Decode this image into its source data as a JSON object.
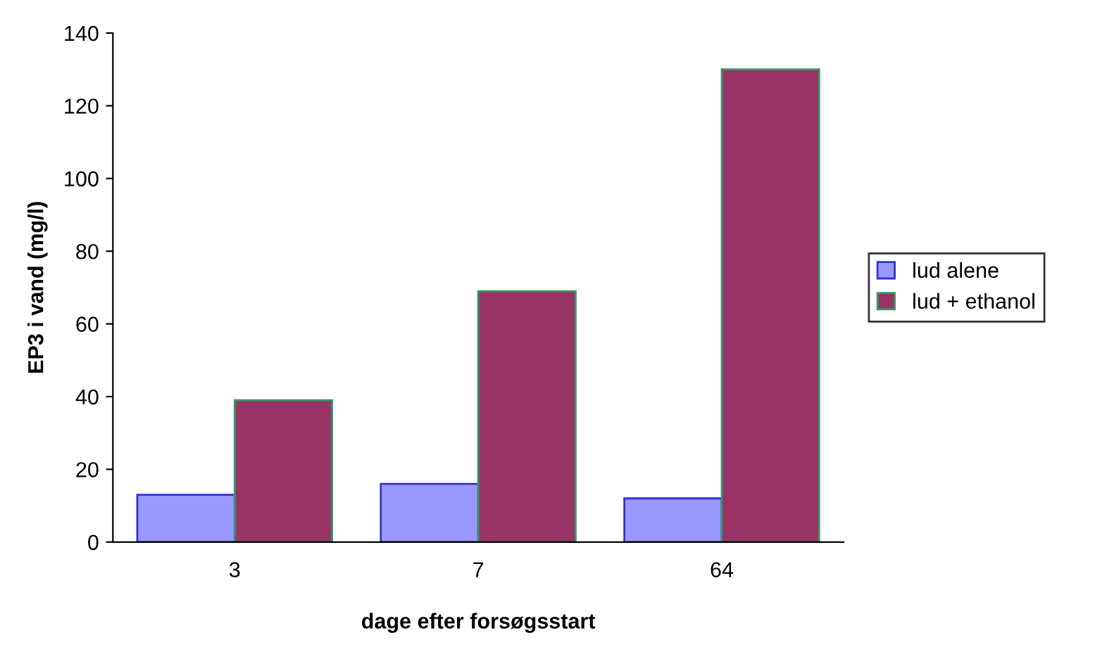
{
  "chart_data": {
    "type": "bar",
    "xlabel": "dage efter forsøgsstart",
    "ylabel": "EP3 i vand (mg/l)",
    "categories": [
      "3",
      "7",
      "64"
    ],
    "series": [
      {
        "name": "lud alene",
        "color": "#9999ff",
        "values": [
          13,
          16,
          12
        ]
      },
      {
        "name": "lud + ethanol",
        "color": "#993366",
        "values": [
          39,
          69,
          130
        ]
      }
    ],
    "ylim": [
      0,
      140
    ],
    "yticks": [
      0,
      20,
      40,
      60,
      80,
      100,
      120,
      140
    ],
    "grid": false,
    "legend": "right"
  }
}
